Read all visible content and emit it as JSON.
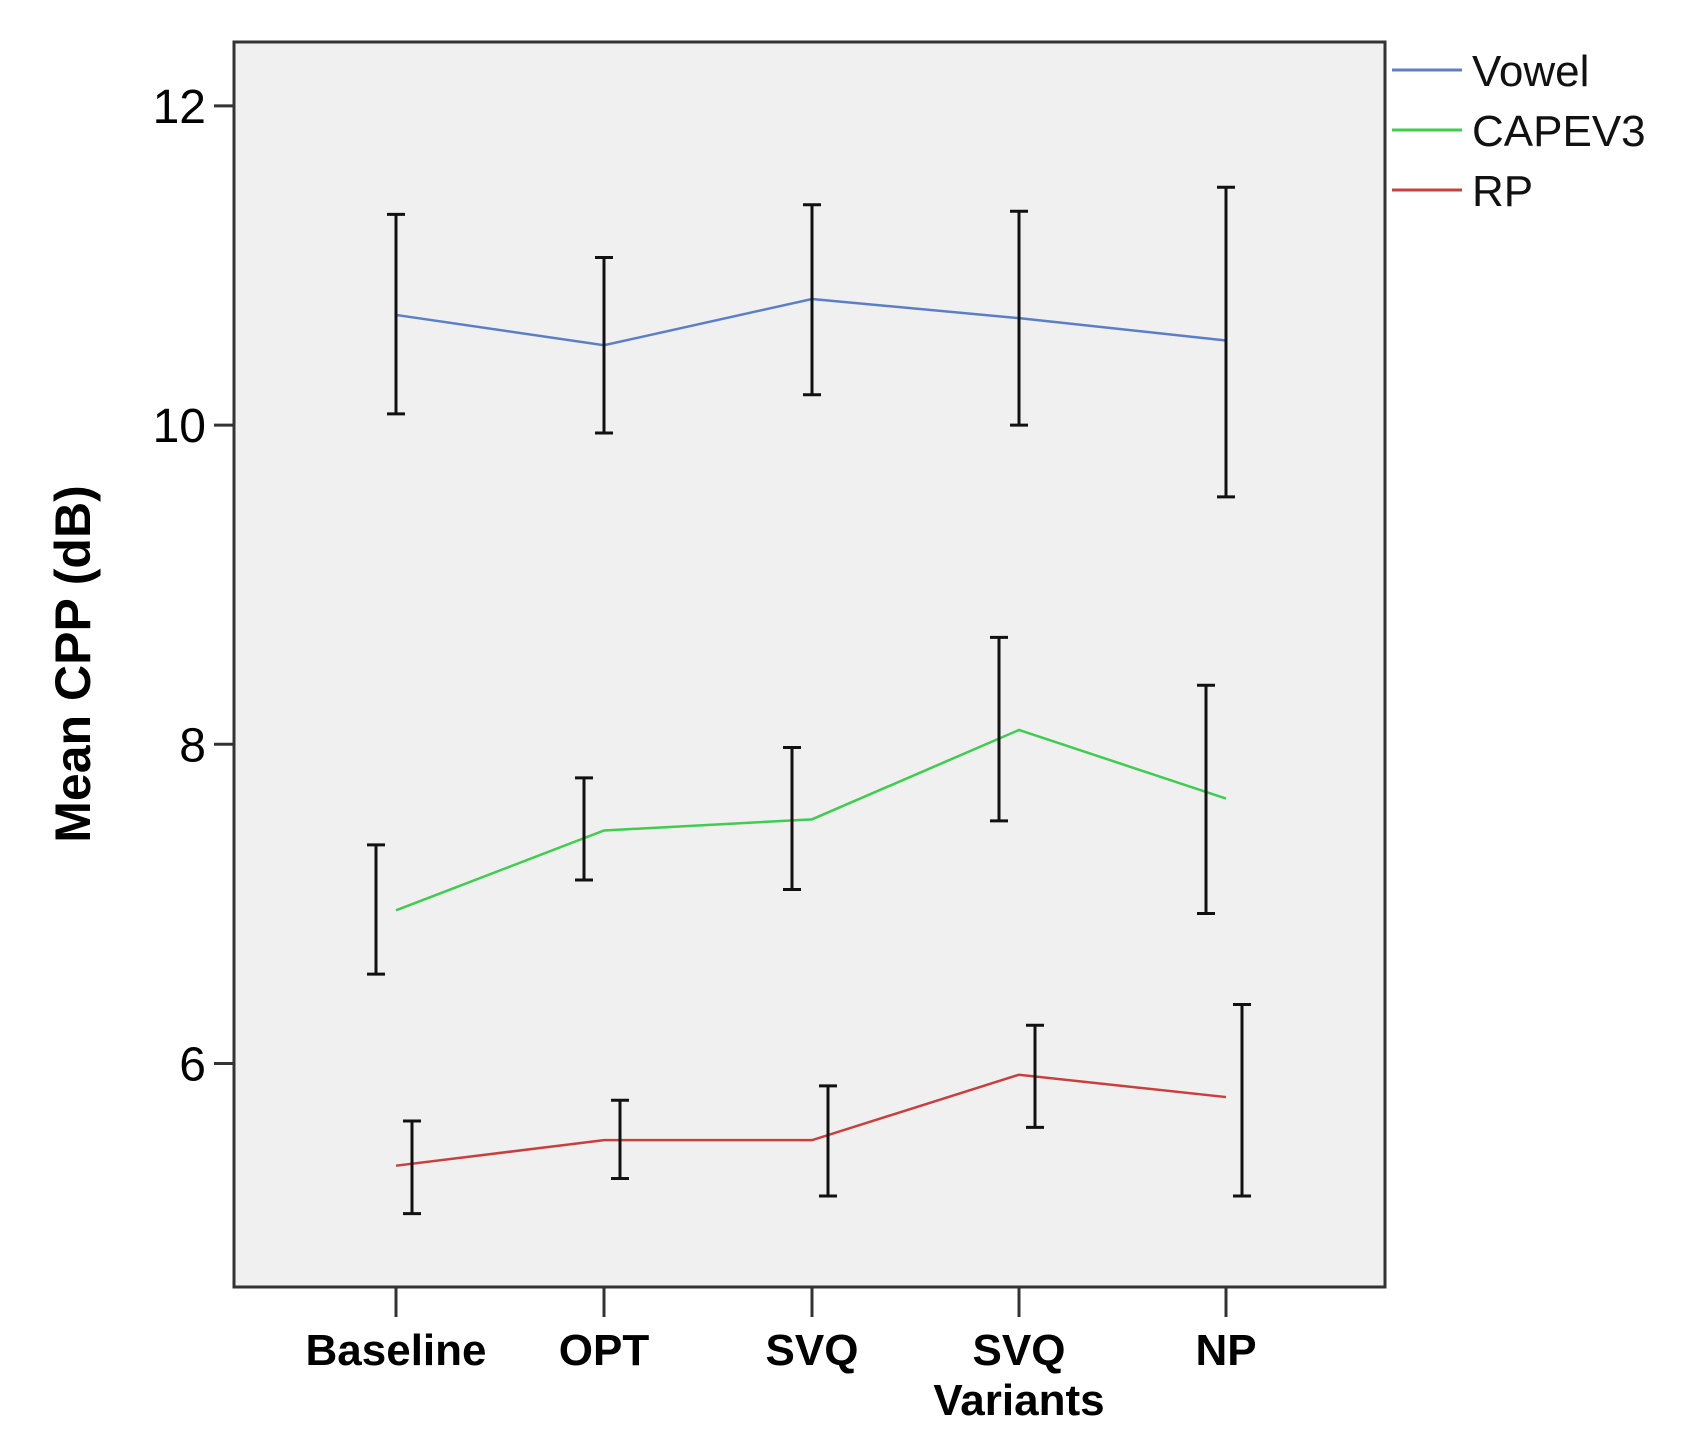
{
  "chart_data": {
    "type": "line",
    "title": "",
    "xlabel": "",
    "ylabel": "Mean CPP (dB)",
    "ylim": [
      4.6,
      12.4
    ],
    "yticks": [
      6,
      8,
      10,
      12
    ],
    "categories": [
      "Baseline",
      "OPT",
      "SVQ",
      "SVQ Variants",
      "NP"
    ],
    "category_lines": [
      [
        "Baseline"
      ],
      [
        "OPT"
      ],
      [
        "SVQ"
      ],
      [
        "SVQ",
        "Variants"
      ],
      [
        "NP"
      ]
    ],
    "legend_position": "top-right, outside plot",
    "grid": false,
    "series": [
      {
        "name": "Vowel",
        "color": "#5b7fc7",
        "values": [
          10.69,
          10.5,
          10.79,
          10.67,
          10.53
        ],
        "ci_low": [
          10.07,
          9.95,
          10.19,
          10.0,
          9.55
        ],
        "ci_high": [
          11.32,
          11.05,
          11.38,
          11.34,
          11.49
        ]
      },
      {
        "name": "CAPEV3",
        "color": "#3fcc4f",
        "values": [
          6.96,
          7.46,
          7.53,
          8.09,
          7.66
        ],
        "ci_low": [
          6.56,
          7.15,
          7.09,
          7.52,
          6.94
        ],
        "ci_high": [
          7.37,
          7.79,
          7.98,
          8.67,
          8.37
        ]
      },
      {
        "name": "RP",
        "color": "#c8403d",
        "values": [
          5.36,
          5.52,
          5.52,
          5.93,
          5.79
        ],
        "ci_low": [
          5.06,
          5.28,
          5.17,
          5.6,
          5.17
        ],
        "ci_high": [
          5.64,
          5.77,
          5.86,
          6.24,
          6.37
        ]
      }
    ]
  }
}
